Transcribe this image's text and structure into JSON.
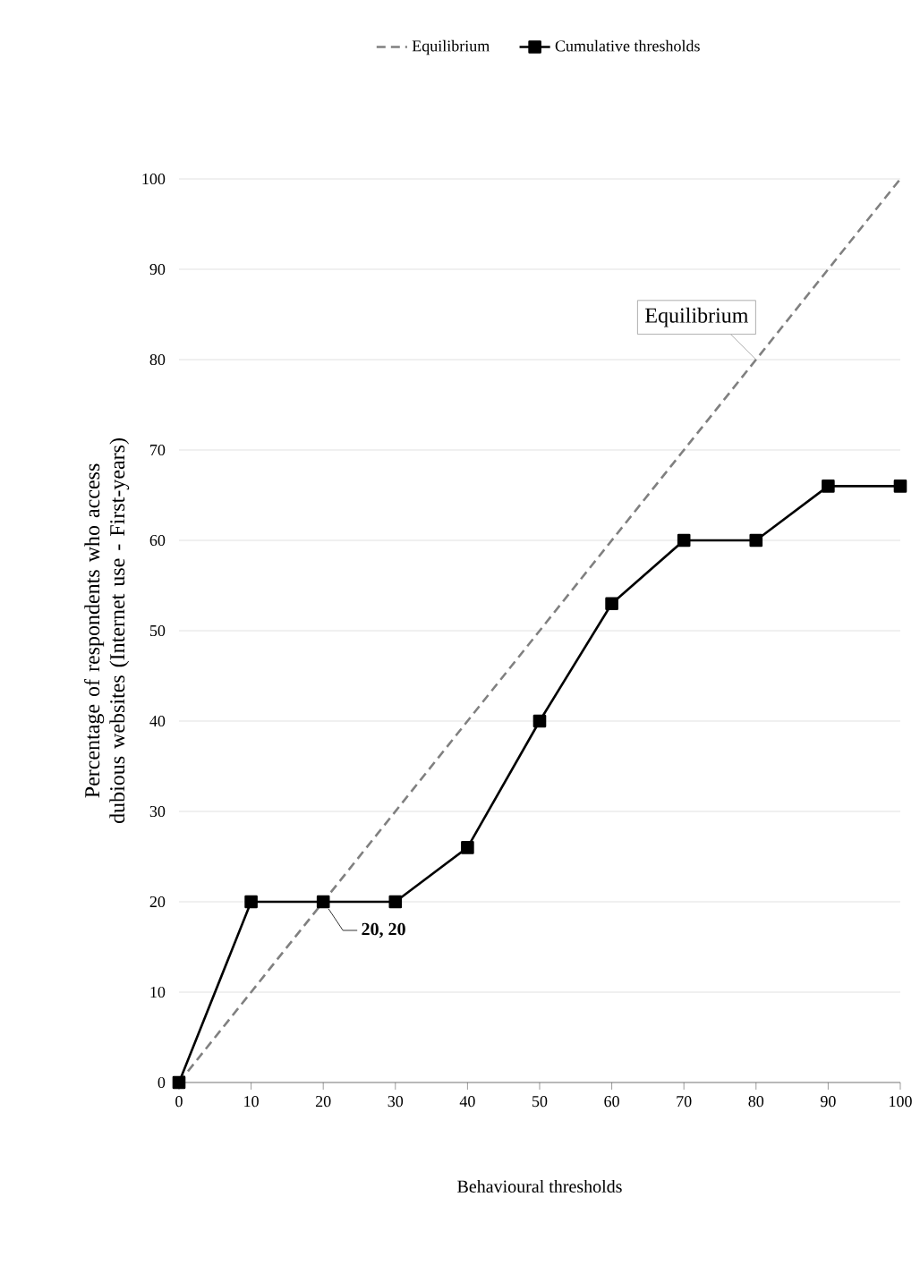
{
  "chart_data": {
    "type": "line",
    "xlabel": "Behavioural thresholds",
    "ylabel": "Percentage of respondents who access dubious websites (Internet use - First-years)",
    "x": [
      0,
      10,
      20,
      30,
      40,
      50,
      60,
      70,
      80,
      90,
      100
    ],
    "series": [
      {
        "name": "Equilibrium",
        "color": "#808080",
        "x": [
          0,
          100
        ],
        "values": [
          0,
          100
        ],
        "line_style": "dashed",
        "marker": "none"
      },
      {
        "name": "Cumulative thresholds",
        "color": "#000000",
        "values": [
          0,
          20,
          20,
          20,
          26,
          40,
          53,
          60,
          60,
          66,
          66
        ],
        "line_style": "solid",
        "marker": "square"
      }
    ],
    "xlim": [
      0,
      100
    ],
    "ylim": [
      0,
      100
    ],
    "xticks": [
      0,
      10,
      20,
      30,
      40,
      50,
      60,
      70,
      80,
      90,
      100
    ],
    "yticks": [
      0,
      10,
      20,
      30,
      40,
      50,
      60,
      70,
      80,
      90,
      100
    ],
    "grid": "y",
    "legend": "top",
    "annotations": [
      {
        "text": "Equilibrium",
        "x": 80,
        "y": 80
      },
      {
        "text": "20, 20",
        "x": 20,
        "y": 20
      }
    ]
  }
}
